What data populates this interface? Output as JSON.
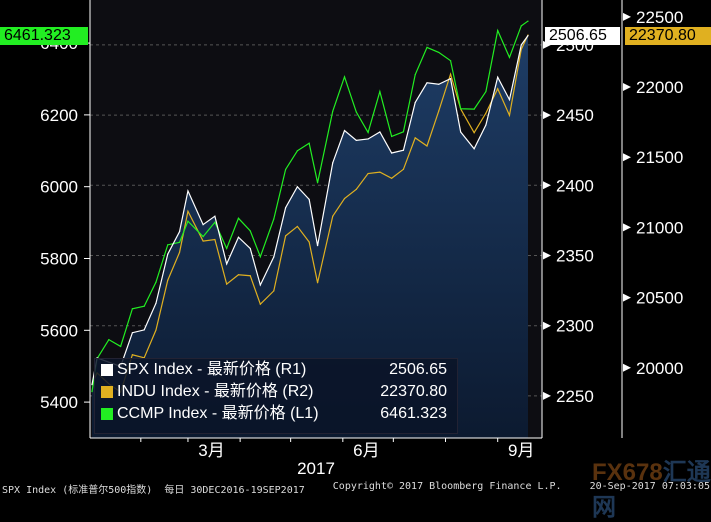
{
  "chart_data": {
    "type": "line",
    "x_label": "2017",
    "x_tick_labels": [
      "3月",
      "6月",
      "9月"
    ],
    "x_tick_dates": [
      "2017-03-15",
      "2017-06-15",
      "2017-09-15"
    ],
    "x_range": [
      "2017-01-03",
      "2017-09-19"
    ],
    "left_axis": {
      "ticks": [
        5400,
        5600,
        5800,
        6000,
        6200,
        6400
      ],
      "range": [
        5300,
        6520
      ]
    },
    "right1_axis": {
      "ticks": [
        2250,
        2300,
        2350,
        2400,
        2450,
        2500
      ],
      "range": [
        2220,
        2532
      ]
    },
    "right2_axis": {
      "ticks": [
        20000,
        20500,
        21000,
        21500,
        22000,
        22500
      ],
      "range": [
        19500,
        22620
      ]
    },
    "dates": [
      "2017-01-03",
      "2017-01-06",
      "2017-01-13",
      "2017-01-20",
      "2017-01-27",
      "2017-02-03",
      "2017-02-10",
      "2017-02-17",
      "2017-02-24",
      "2017-03-01",
      "2017-03-10",
      "2017-03-17",
      "2017-03-24",
      "2017-03-31",
      "2017-04-07",
      "2017-04-13",
      "2017-04-21",
      "2017-04-28",
      "2017-05-05",
      "2017-05-12",
      "2017-05-17",
      "2017-05-26",
      "2017-06-02",
      "2017-06-09",
      "2017-06-16",
      "2017-06-23",
      "2017-06-30",
      "2017-07-07",
      "2017-07-14",
      "2017-07-21",
      "2017-07-28",
      "2017-08-04",
      "2017-08-10",
      "2017-08-18",
      "2017-08-25",
      "2017-09-01",
      "2017-09-08",
      "2017-09-15",
      "2017-09-19"
    ],
    "series": [
      {
        "name": "SPX Index - 最新价格 (R1)",
        "axis": "R1",
        "color": "#ffffff",
        "last": "2506.65",
        "values": [
          2258,
          2277,
          2274,
          2271,
          2295,
          2297,
          2316,
          2351,
          2367,
          2396,
          2372,
          2378,
          2344,
          2363,
          2355,
          2329,
          2349,
          2384,
          2399,
          2390,
          2357,
          2416,
          2439,
          2432,
          2433,
          2438,
          2423,
          2425,
          2459,
          2473,
          2472,
          2476,
          2438,
          2426,
          2443,
          2477,
          2461,
          2500,
          2506.65
        ]
      },
      {
        "name": "INDU Index - 最新价格 (R2)",
        "axis": "R2",
        "color": "#e0b020",
        "last": "22370.80",
        "values": [
          19881,
          19964,
          19886,
          19827,
          20093,
          20071,
          20269,
          20624,
          20822,
          21115,
          20903,
          20914,
          20596,
          20663,
          20656,
          20453,
          20548,
          20940,
          21007,
          20896,
          20606,
          21080,
          21206,
          21271,
          21384,
          21394,
          21350,
          21414,
          21638,
          21580,
          21830,
          22092,
          21844,
          21675,
          21814,
          21988,
          21798,
          22268,
          22370.8
        ]
      },
      {
        "name": "CCMP Index - 最新价格 (L1)",
        "axis": "L1",
        "color": "#22ee22",
        "last": "6461.323",
        "values": [
          5429,
          5521,
          5574,
          5555,
          5660,
          5667,
          5734,
          5838,
          5845,
          5904,
          5861,
          5901,
          5828,
          5912,
          5877,
          5805,
          5910,
          6048,
          6100,
          6121,
          6011,
          6210,
          6306,
          6208,
          6151,
          6265,
          6140,
          6153,
          6312,
          6388,
          6374,
          6351,
          6217,
          6216,
          6265,
          6435,
          6360,
          6448,
          6461.323
        ]
      }
    ]
  },
  "badges": {
    "left": "6461.323",
    "r1": "2506.65",
    "r2": "22370.80"
  },
  "footer": {
    "security": "SPX Index (标准普尔500指数)  每日 30DEC2016-19SEP2017",
    "copyright": "Copyright© 2017 Bloomberg Finance L.P.",
    "timestamp": "20-Sep-2017 07:03:05"
  },
  "watermark": {
    "a": "FX678",
    "b": "汇通网"
  }
}
